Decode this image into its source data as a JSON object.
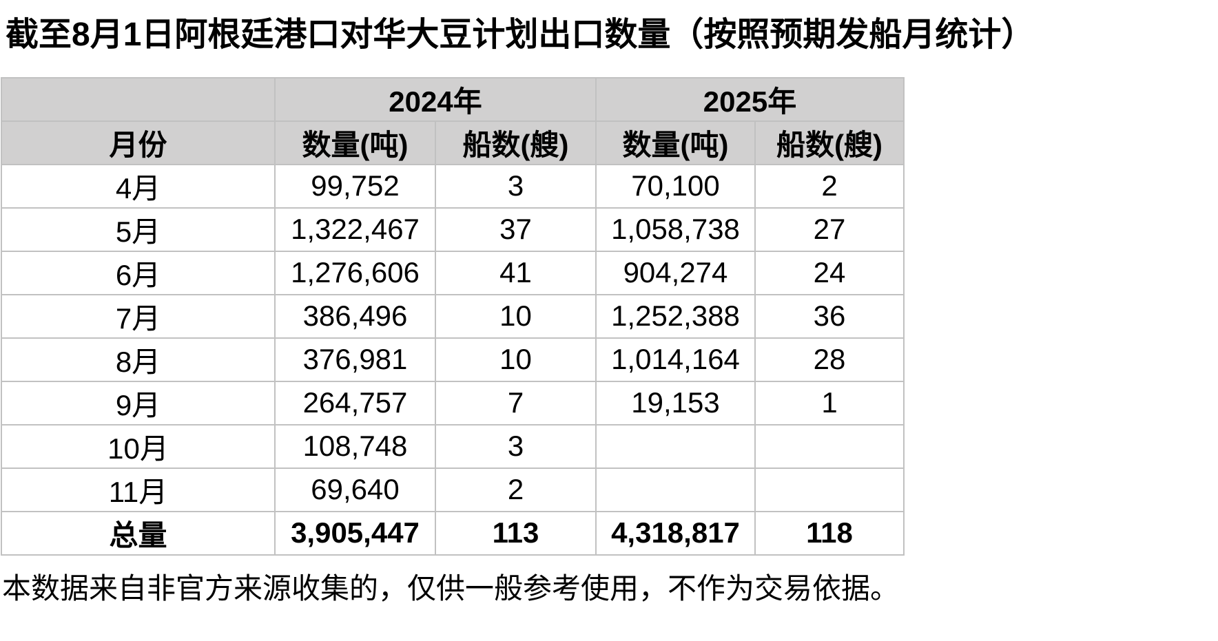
{
  "title": "截至8月1日阿根廷港口对华大豆计划出口数量（按照预期发船月统计）",
  "footnote": "本数据来自非官方来源收集的，仅供一般参考使用，不作为交易依据。",
  "colors": {
    "header_bg": "#d1d0d0",
    "border": "#c1c1c1",
    "text": "#000000",
    "background": "#ffffff"
  },
  "table": {
    "year_headers": [
      {
        "label": "2024年"
      },
      {
        "label": "2025年"
      }
    ],
    "month_column_header": "月份",
    "sub_headers": {
      "qty_2024": "数量(吨)",
      "ships_2024": "船数(艘)",
      "qty_2025": "数量(吨)",
      "ships_2025": "船数(艘)"
    },
    "rows": [
      {
        "month": "4月",
        "qty_2024": "99,752",
        "ships_2024": "3",
        "qty_2025": "70,100",
        "ships_2025": "2"
      },
      {
        "month": "5月",
        "qty_2024": "1,322,467",
        "ships_2024": "37",
        "qty_2025": "1,058,738",
        "ships_2025": "27"
      },
      {
        "month": "6月",
        "qty_2024": "1,276,606",
        "ships_2024": "41",
        "qty_2025": "904,274",
        "ships_2025": "24"
      },
      {
        "month": "7月",
        "qty_2024": "386,496",
        "ships_2024": "10",
        "qty_2025": "1,252,388",
        "ships_2025": "36"
      },
      {
        "month": "8月",
        "qty_2024": "376,981",
        "ships_2024": "10",
        "qty_2025": "1,014,164",
        "ships_2025": "28"
      },
      {
        "month": "9月",
        "qty_2024": "264,757",
        "ships_2024": "7",
        "qty_2025": "19,153",
        "ships_2025": "1"
      },
      {
        "month": "10月",
        "qty_2024": "108,748",
        "ships_2024": "3",
        "qty_2025": "",
        "ships_2025": ""
      },
      {
        "month": "11月",
        "qty_2024": "69,640",
        "ships_2024": "2",
        "qty_2025": "",
        "ships_2025": ""
      }
    ],
    "total_row": {
      "month": "总量",
      "qty_2024": "3,905,447",
      "ships_2024": "113",
      "qty_2025": "4,318,817",
      "ships_2025": "118"
    }
  }
}
